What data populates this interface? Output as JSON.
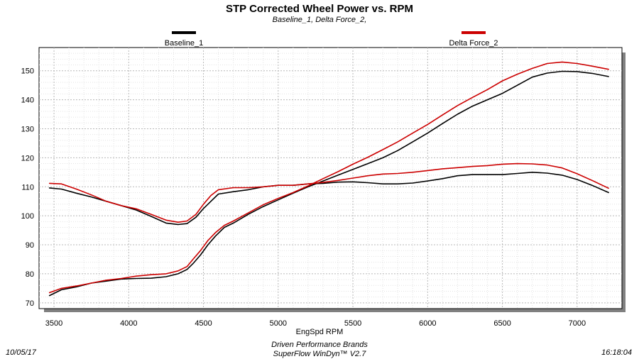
{
  "chart_data": {
    "type": "line",
    "title": "STP Corrected Wheel Power vs. RPM",
    "subtitle": "Baseline_1, Delta Force_2,",
    "xlabel": "EngSpd  RPM",
    "ylabel": "",
    "xlim": [
      3400,
      7300
    ],
    "ylim": [
      68,
      158
    ],
    "xticks": [
      3500,
      4000,
      4500,
      5000,
      5500,
      6000,
      6500,
      7000
    ],
    "yticks": [
      70,
      80,
      90,
      100,
      110,
      120,
      130,
      140,
      150
    ],
    "grid": true,
    "legend_position": "top",
    "series": [
      {
        "name": "Baseline_1",
        "color": "#000000",
        "curves": {
          "power": {
            "x": [
              3470,
              3550,
              3650,
              3750,
              3850,
              3950,
              4050,
              4150,
              4250,
              4330,
              4390,
              4430,
              4480,
              4530,
              4580,
              4640,
              4700,
              4800,
              4900,
              5000,
              5100,
              5200,
              5300,
              5400,
              5500,
              5600,
              5700,
              5800,
              5900,
              6000,
              6100,
              6200,
              6300,
              6400,
              6500,
              6600,
              6700,
              6800,
              6900,
              7000,
              7100,
              7210
            ],
            "y": [
              72.5,
              74.5,
              75.5,
              76.8,
              77.5,
              78.2,
              78.4,
              78.5,
              79,
              80,
              81.5,
              83.5,
              86.5,
              90,
              93,
              96,
              97.5,
              100.5,
              103.2,
              105.5,
              107.8,
              110,
              112,
              114,
              116,
              118,
              120,
              122.5,
              125.5,
              128.5,
              131.8,
              135,
              137.8,
              140,
              142.2,
              145,
              147.8,
              149.2,
              149.8,
              149.7,
              149.1,
              148
            ]
          },
          "torque": {
            "x": [
              3470,
              3550,
              3650,
              3750,
              3850,
              3950,
              4050,
              4150,
              4250,
              4330,
              4390,
              4450,
              4500,
              4550,
              4600,
              4700,
              4800,
              4900,
              5000,
              5100,
              5200,
              5300,
              5400,
              5500,
              5600,
              5700,
              5800,
              5900,
              6000,
              6100,
              6200,
              6300,
              6400,
              6500,
              6600,
              6700,
              6800,
              6900,
              7000,
              7100,
              7210
            ],
            "y": [
              109.6,
              109.2,
              107.8,
              106.5,
              105,
              103.5,
              102,
              99.8,
              97.5,
              97,
              97.3,
              99.5,
              102.5,
              105,
              107.5,
              108.3,
              109,
              110,
              110.5,
              110.5,
              111,
              111.2,
              111.6,
              111.7,
              111.4,
              111,
              111,
              111.3,
              112,
              112.8,
              113.8,
              114.2,
              114.2,
              114.2,
              114.6,
              115,
              114.7,
              114,
              112.5,
              110.5,
              108
            ]
          }
        }
      },
      {
        "name": "Delta Force_2",
        "color": "#cc0000",
        "curves": {
          "power": {
            "x": [
              3470,
              3550,
              3650,
              3750,
              3850,
              3950,
              4050,
              4150,
              4250,
              4330,
              4390,
              4430,
              4480,
              4530,
              4580,
              4640,
              4700,
              4800,
              4900,
              5000,
              5100,
              5200,
              5300,
              5400,
              5500,
              5600,
              5700,
              5800,
              5900,
              6000,
              6100,
              6200,
              6300,
              6400,
              6500,
              6600,
              6700,
              6800,
              6900,
              7000,
              7100,
              7210
            ],
            "y": [
              73.5,
              75,
              75.8,
              76.8,
              77.8,
              78.4,
              79.2,
              79.7,
              80,
              81,
              82.5,
              85,
              88,
              91.5,
              94.2,
              96.7,
              98.2,
              101,
              103.8,
              106,
              108,
              110.3,
              112.8,
              115.2,
              117.8,
              120.2,
              122.8,
              125.5,
              128.5,
              131.5,
              134.8,
              138,
              140.8,
              143.5,
              146.5,
              148.8,
              150.8,
              152.5,
              153,
              152.5,
              151.6,
              150.5
            ]
          },
          "torque": {
            "x": [
              3470,
              3550,
              3650,
              3750,
              3850,
              3950,
              4050,
              4150,
              4250,
              4330,
              4390,
              4450,
              4500,
              4550,
              4600,
              4700,
              4800,
              4900,
              5000,
              5100,
              5200,
              5300,
              5400,
              5500,
              5600,
              5700,
              5800,
              5900,
              6000,
              6100,
              6200,
              6300,
              6400,
              6500,
              6600,
              6700,
              6800,
              6900,
              7000,
              7100,
              7210
            ],
            "y": [
              111.2,
              111,
              109.2,
              107.2,
              105,
              103.5,
              102.4,
              100.5,
              98.5,
              97.8,
              98.2,
              100.5,
              104,
              107,
              109,
              109.7,
              109.7,
              110,
              110.5,
              110.5,
              111,
              111.5,
              112.2,
              113,
              113.8,
              114.4,
              114.6,
              115,
              115.6,
              116.2,
              116.6,
              117,
              117.3,
              117.8,
              118,
              117.9,
              117.5,
              116.5,
              114.5,
              112.2,
              109.5
            ]
          }
        }
      }
    ]
  },
  "footer": {
    "date": "10/05/17",
    "company": "Driven Performance Brands",
    "software": "SuperFlow WinDyn™  V2.7",
    "time": "16:18:04"
  }
}
